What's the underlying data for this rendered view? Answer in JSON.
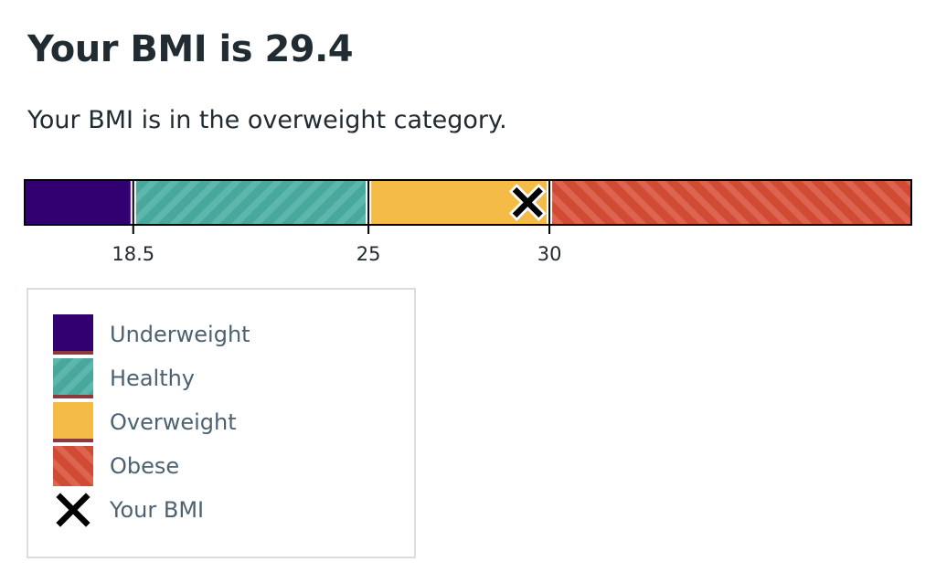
{
  "result": {
    "title": "Your BMI is 29.4",
    "description": "Your BMI is in the overweight category."
  },
  "chart_data": {
    "type": "bar",
    "orientation": "horizontal-range",
    "value": 29.4,
    "thresholds": [
      18.5,
      25,
      30
    ],
    "tick_labels": [
      "18.5",
      "25",
      "30"
    ],
    "range": [
      15.5,
      40
    ],
    "categories": [
      {
        "label": "Underweight",
        "from": 15.5,
        "to": 18.5,
        "color": "#330072",
        "pattern": "solid"
      },
      {
        "label": "Healthy",
        "from": 18.5,
        "to": 25,
        "color": "#49a89d",
        "pattern": "stripes-forward"
      },
      {
        "label": "Overweight",
        "from": 25,
        "to": 30,
        "color": "#f4bb46",
        "pattern": "solid"
      },
      {
        "label": "Obese",
        "from": 30,
        "to": 40,
        "color": "#d04b34",
        "pattern": "stripes-back"
      }
    ],
    "marker": {
      "label": "Your BMI",
      "icon": "cross-icon",
      "color": "#000000"
    }
  },
  "legend": {
    "items": [
      {
        "label": "Underweight"
      },
      {
        "label": "Healthy"
      },
      {
        "label": "Overweight"
      },
      {
        "label": "Obese"
      },
      {
        "label": "Your BMI"
      }
    ]
  }
}
